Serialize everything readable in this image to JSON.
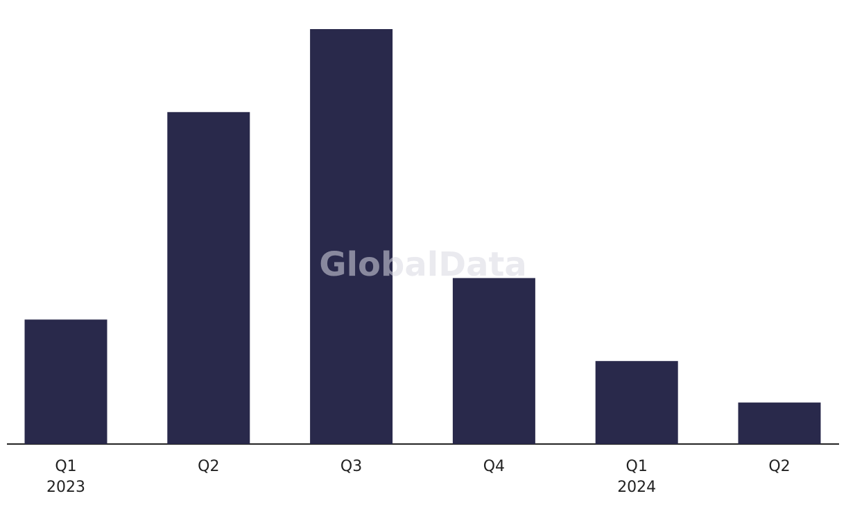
{
  "chart_data": {
    "type": "bar",
    "watermark": "GlobalData",
    "categories": [
      "Q1",
      "Q2",
      "Q3",
      "Q4",
      "Q1",
      "Q2"
    ],
    "year_labels": [
      "2023",
      null,
      null,
      null,
      "2024",
      null
    ],
    "values": [
      3,
      8,
      10,
      4,
      2,
      1
    ],
    "color": "#29294b",
    "ylim": [
      0,
      10
    ]
  }
}
